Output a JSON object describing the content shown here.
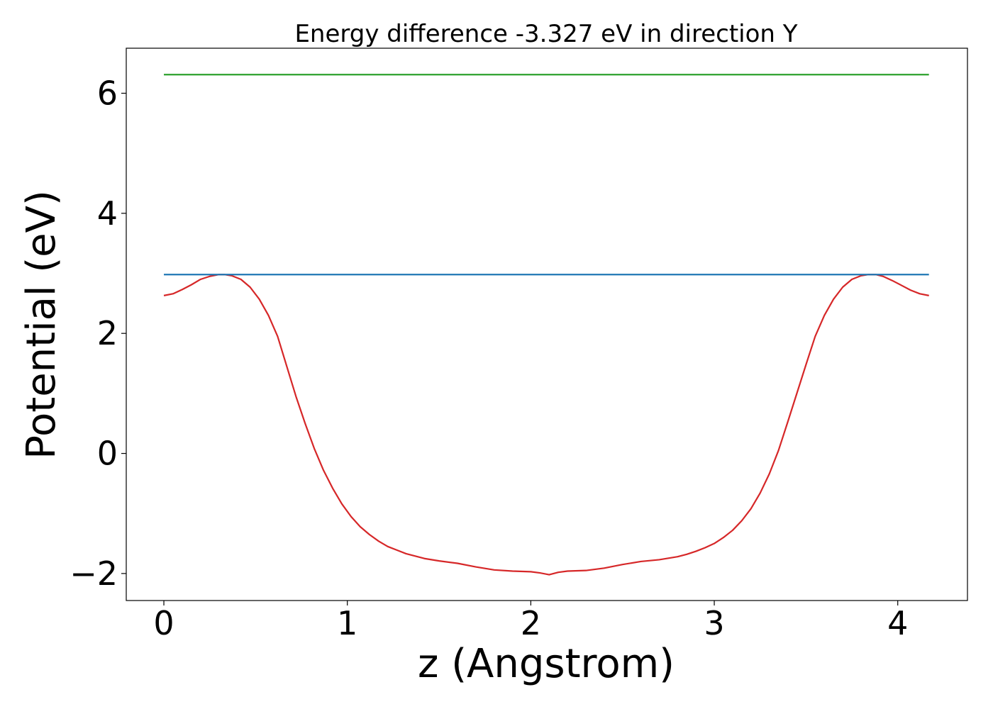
{
  "chart_data": {
    "type": "line",
    "title": "Energy difference -3.327 eV in direction Y",
    "xlabel": "z (Angstrom)",
    "ylabel": "Potential (eV)",
    "xlim": [
      -0.205,
      4.38
    ],
    "ylim": [
      -2.45,
      6.75
    ],
    "xticks": [
      0,
      1,
      2,
      3,
      4
    ],
    "xtick_labels": [
      "0",
      "1",
      "2",
      "3",
      "4"
    ],
    "yticks": [
      -2,
      0,
      2,
      4,
      6
    ],
    "ytick_labels": [
      "−2",
      "0",
      "2",
      "4",
      "6"
    ],
    "grid": false,
    "series": [
      {
        "color": "#d62728",
        "x": [
          0,
          0.05,
          0.1,
          0.15,
          0.2,
          0.25,
          0.3,
          0.33,
          0.37,
          0.42,
          0.47,
          0.52,
          0.57,
          0.62,
          0.67,
          0.72,
          0.77,
          0.82,
          0.87,
          0.92,
          0.97,
          1.02,
          1.07,
          1.12,
          1.17,
          1.22,
          1.27,
          1.32,
          1.37,
          1.42,
          1.5,
          1.6,
          1.7,
          1.8,
          1.9,
          2.0,
          2.05,
          2.1,
          2.15,
          2.2,
          2.3,
          2.4,
          2.5,
          2.6,
          2.7,
          2.8,
          2.85,
          2.9,
          2.95,
          3.0,
          3.05,
          3.1,
          3.15,
          3.2,
          3.25,
          3.3,
          3.35,
          3.4,
          3.45,
          3.5,
          3.55,
          3.6,
          3.65,
          3.7,
          3.75,
          3.8,
          3.84,
          3.88,
          3.92,
          3.97,
          4.02,
          4.07,
          4.12,
          4.17
        ],
        "y": [
          2.63,
          2.66,
          2.73,
          2.81,
          2.9,
          2.95,
          2.98,
          2.98,
          2.96,
          2.9,
          2.77,
          2.57,
          2.3,
          1.95,
          1.45,
          0.95,
          0.5,
          0.08,
          -0.28,
          -0.58,
          -0.84,
          -1.05,
          -1.22,
          -1.35,
          -1.46,
          -1.55,
          -1.61,
          -1.67,
          -1.71,
          -1.75,
          -1.79,
          -1.83,
          -1.89,
          -1.94,
          -1.96,
          -1.97,
          -1.99,
          -2.02,
          -1.98,
          -1.96,
          -1.95,
          -1.91,
          -1.85,
          -1.8,
          -1.77,
          -1.72,
          -1.68,
          -1.63,
          -1.57,
          -1.5,
          -1.4,
          -1.28,
          -1.12,
          -0.92,
          -0.66,
          -0.34,
          0.05,
          0.52,
          1.0,
          1.48,
          1.95,
          2.3,
          2.57,
          2.77,
          2.9,
          2.96,
          2.98,
          2.98,
          2.95,
          2.88,
          2.8,
          2.72,
          2.66,
          2.63
        ]
      },
      {
        "color": "#1f77b4",
        "x": [
          0,
          4.17
        ],
        "y": [
          2.98,
          2.98
        ]
      },
      {
        "color": "#2ca02c",
        "x": [
          0,
          4.17
        ],
        "y": [
          6.31,
          6.31
        ]
      }
    ]
  }
}
